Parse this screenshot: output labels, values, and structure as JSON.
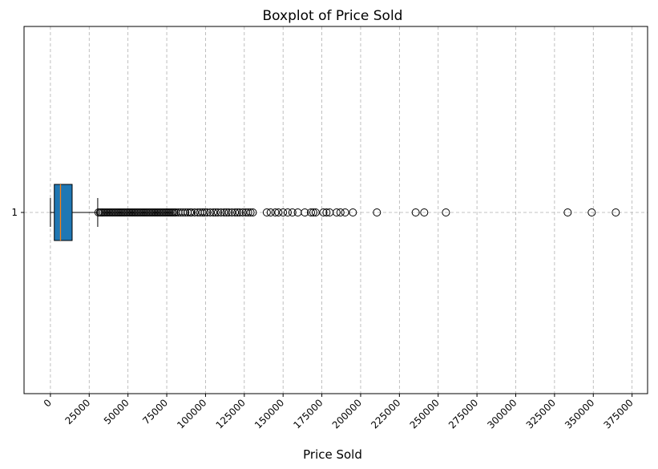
{
  "chart_data": {
    "type": "boxplot",
    "orientation": "horizontal",
    "title": "Boxplot of Price Sold",
    "xlabel": "Price Sold",
    "ylabel": "",
    "xlim": [
      -17000,
      385000
    ],
    "x_ticks": [
      0,
      25000,
      50000,
      75000,
      100000,
      125000,
      150000,
      175000,
      200000,
      225000,
      250000,
      275000,
      300000,
      325000,
      350000,
      375000
    ],
    "x_tick_rotation": 45,
    "y_ticks": [
      "1"
    ],
    "grid": true,
    "box_color": "#1f77b4",
    "median_color": "#ff7f0e",
    "box": {
      "category": "1",
      "whisker_low": 0,
      "q1": 2500,
      "median": 6500,
      "q3": 14000,
      "whisker_high": 30500
    },
    "outliers": [
      31000,
      32000,
      33000,
      34000,
      35000,
      36000,
      37000,
      38000,
      39000,
      40000,
      41000,
      42000,
      43000,
      44000,
      45000,
      46000,
      47000,
      48000,
      49000,
      50000,
      51000,
      52000,
      53000,
      54000,
      55000,
      56000,
      57000,
      58000,
      59000,
      60000,
      61000,
      62000,
      63000,
      64000,
      65000,
      66000,
      67000,
      68000,
      69000,
      70000,
      71000,
      72000,
      73000,
      74000,
      75000,
      76000,
      77000,
      78000,
      79000,
      80000,
      81000,
      82500,
      84000,
      85500,
      87000,
      88500,
      90000,
      91000,
      93000,
      95000,
      96500,
      98000,
      99500,
      101000,
      103000,
      105000,
      106500,
      108000,
      110000,
      112000,
      113500,
      115000,
      117000,
      119000,
      120500,
      122000,
      124000,
      126000,
      127500,
      129000,
      130500,
      139500,
      142000,
      145000,
      147000,
      150000,
      153000,
      156000,
      159500,
      164000,
      168000,
      169500,
      171000,
      176000,
      178000,
      180000,
      184500,
      187000,
      190000,
      195000,
      210500,
      235500,
      241000,
      255000,
      333500,
      349000,
      364500
    ]
  }
}
